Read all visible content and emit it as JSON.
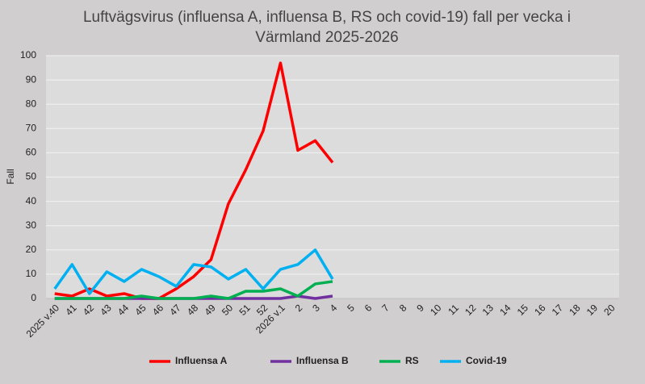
{
  "chart_data": {
    "type": "line",
    "title": [
      "Luftvägsvirus (influensa A, influensa B, RS och covid-19) fall per vecka i",
      "Värmland 2025-2026"
    ],
    "y_label": "Fall",
    "categories": [
      "2025 v.40",
      "41",
      "42",
      "43",
      "44",
      "45",
      "46",
      "47",
      "48",
      "49",
      "50",
      "51",
      "52",
      "2026 v.1",
      "2",
      "3",
      "4",
      "5",
      "6",
      "7",
      "8",
      "9",
      "10",
      "11",
      "12",
      "13",
      "14",
      "15",
      "16",
      "17",
      "18",
      "19",
      "20"
    ],
    "series": [
      {
        "name": "Influensa A",
        "color": "#ff0000",
        "values": [
          2,
          1,
          4,
          1,
          2,
          0,
          0,
          4,
          9,
          16,
          39,
          53,
          69,
          97,
          61,
          65,
          56,
          null,
          null,
          null,
          null,
          null,
          null,
          null,
          null,
          null,
          null,
          null,
          null,
          null,
          null,
          null,
          null
        ]
      },
      {
        "name": "Influensa B",
        "color": "#7030a0",
        "values": [
          0,
          0,
          0,
          0,
          0,
          0,
          0,
          0,
          0,
          0,
          0,
          0,
          0,
          0,
          1,
          0,
          1,
          null,
          null,
          null,
          null,
          null,
          null,
          null,
          null,
          null,
          null,
          null,
          null,
          null,
          null,
          null,
          null
        ]
      },
      {
        "name": "RS",
        "color": "#00b050",
        "values": [
          0,
          0,
          0,
          0,
          0,
          1,
          0,
          0,
          0,
          1,
          0,
          3,
          3,
          4,
          1,
          6,
          7,
          null,
          null,
          null,
          null,
          null,
          null,
          null,
          null,
          null,
          null,
          null,
          null,
          null,
          null,
          null,
          null
        ]
      },
      {
        "name": "Covid-19",
        "color": "#00b0f0",
        "values": [
          4,
          14,
          2,
          11,
          7,
          12,
          9,
          5,
          14,
          13,
          8,
          12,
          4,
          12,
          14,
          20,
          8,
          null,
          null,
          null,
          null,
          null,
          null,
          null,
          null,
          null,
          null,
          null,
          null,
          null,
          null,
          null,
          null
        ]
      }
    ],
    "ylim": [
      0,
      100
    ],
    "yticks": [
      0,
      10,
      20,
      30,
      40,
      50,
      60,
      70,
      80,
      90,
      100
    ],
    "grid": true,
    "legend": "bottom"
  }
}
